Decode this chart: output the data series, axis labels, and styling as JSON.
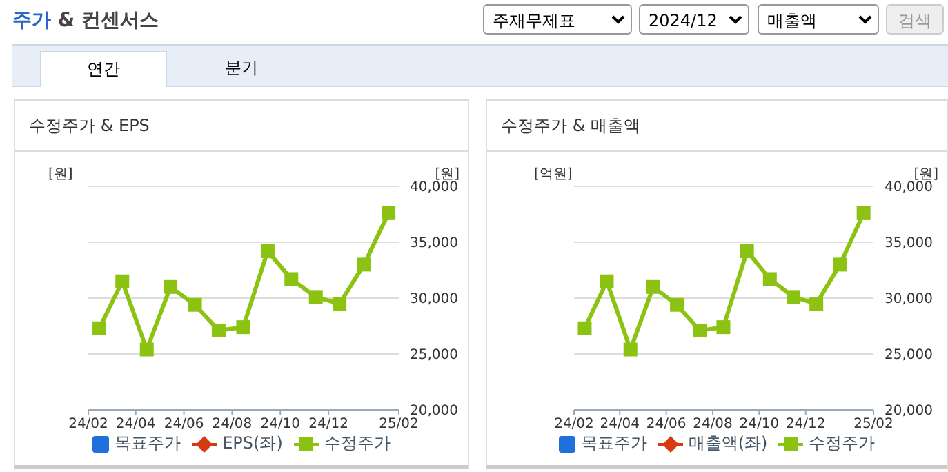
{
  "chart_data": [
    {
      "type": "line",
      "title": "수정주가 & EPS",
      "ylabel": "[원]",
      "y2label": "[원]",
      "annotations": [
        "주가 & 컨센서스",
        "주재무제표",
        "2024/12",
        "매출액",
        "검색",
        "연간",
        "분기"
      ],
      "x": [
        "2024-02-15",
        "2024-03-15",
        "2024-04-15",
        "2024-05-15",
        "2024-06-15",
        "2024-07-15",
        "2024-08-15",
        "2024-09-15",
        "2024-10-15",
        "2024-11-15",
        "2024-12-15",
        "2025-01-15",
        "2025-02-15"
      ],
      "xlim": [
        "2024-02-01",
        "2025-02-28"
      ],
      "xticks": [
        {
          "value": "2024-02-01",
          "label": "24/02"
        },
        {
          "value": "2024-04-01",
          "label": "24/04"
        },
        {
          "value": "2024-06-01",
          "label": "24/06"
        },
        {
          "value": "2024-08-01",
          "label": "24/08"
        },
        {
          "value": "2024-10-01",
          "label": "24/10"
        },
        {
          "value": "2024-12-01",
          "label": "24/12"
        },
        {
          "value": "2025-02-28",
          "label": "25/02"
        }
      ],
      "y2lim": [
        20000,
        40000
      ],
      "y2ticks": [
        {
          "value": 20000,
          "label": "20,000"
        },
        {
          "value": 25000,
          "label": "25,000"
        },
        {
          "value": 30000,
          "label": "30,000"
        },
        {
          "value": 35000,
          "label": "35,000"
        },
        {
          "value": 40000,
          "label": "40,000"
        }
      ],
      "series": [
        {
          "name": "목표주가",
          "type": "bar",
          "color": "#1f6fdc",
          "values": [
            null,
            null,
            null,
            null,
            null,
            null,
            null,
            null,
            null,
            null,
            null,
            null,
            null
          ]
        },
        {
          "name": "EPS(좌)",
          "type": "line",
          "color": "#d63a12",
          "values": [
            null,
            null,
            null,
            null,
            null,
            null,
            null,
            null,
            null,
            null,
            null,
            null,
            null
          ]
        },
        {
          "name": "수정주가",
          "axis": "y2",
          "color": "#8cc313",
          "values": [
            27300,
            31500,
            25400,
            31000,
            29400,
            27100,
            27400,
            34200,
            31700,
            30100,
            29500,
            33000,
            37600
          ]
        }
      ],
      "grid": "y",
      "legend": "bottom",
      "marker": "square"
    },
    {
      "type": "line",
      "title": "수정주가 & 매출액",
      "ylabel": "[억원]",
      "y2label": "[원]",
      "x": [
        "2024-02-15",
        "2024-03-15",
        "2024-04-15",
        "2024-05-15",
        "2024-06-15",
        "2024-07-15",
        "2024-08-15",
        "2024-09-15",
        "2024-10-15",
        "2024-11-15",
        "2024-12-15",
        "2025-01-15",
        "2025-02-15"
      ],
      "xlim": [
        "2024-02-01",
        "2025-02-28"
      ],
      "xticks": [
        {
          "value": "2024-02-01",
          "label": "24/02"
        },
        {
          "value": "2024-04-01",
          "label": "24/04"
        },
        {
          "value": "2024-06-01",
          "label": "24/06"
        },
        {
          "value": "2024-08-01",
          "label": "24/08"
        },
        {
          "value": "2024-10-01",
          "label": "24/10"
        },
        {
          "value": "2024-12-01",
          "label": "24/12"
        },
        {
          "value": "2025-02-28",
          "label": "25/02"
        }
      ],
      "y2lim": [
        20000,
        40000
      ],
      "y2ticks": [
        {
          "value": 20000,
          "label": "20,000"
        },
        {
          "value": 25000,
          "label": "25,000"
        },
        {
          "value": 30000,
          "label": "30,000"
        },
        {
          "value": 35000,
          "label": "35,000"
        },
        {
          "value": 40000,
          "label": "40,000"
        }
      ],
      "series": [
        {
          "name": "목표주가",
          "type": "bar",
          "color": "#1f6fdc",
          "values": [
            null,
            null,
            null,
            null,
            null,
            null,
            null,
            null,
            null,
            null,
            null,
            null,
            null
          ]
        },
        {
          "name": "매출액(좌)",
          "type": "line",
          "color": "#d63a12",
          "values": [
            null,
            null,
            null,
            null,
            null,
            null,
            null,
            null,
            null,
            null,
            null,
            null,
            null
          ]
        },
        {
          "name": "수정주가",
          "axis": "y2",
          "color": "#8cc313",
          "values": [
            27300,
            31500,
            25400,
            31000,
            29400,
            27100,
            27400,
            34200,
            31700,
            30100,
            29500,
            33000,
            37600
          ]
        }
      ],
      "grid": "y",
      "legend": "bottom",
      "marker": "square"
    }
  ]
}
